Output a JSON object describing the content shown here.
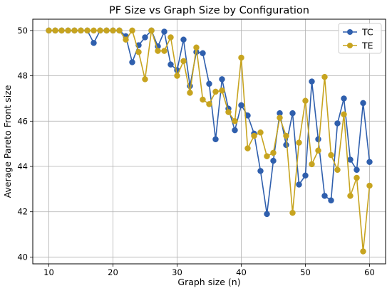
{
  "chart_data": {
    "type": "line",
    "title": "PF Size vs Graph Size by Configuration",
    "xlabel": "Graph size (n)",
    "ylabel": "Average Pareto Front size",
    "xlim": [
      7.5,
      62.5
    ],
    "ylim": [
      39.7,
      50.5
    ],
    "xticks": [
      10,
      20,
      30,
      40,
      50,
      60
    ],
    "yticks": [
      40,
      42,
      44,
      46,
      48,
      50
    ],
    "grid": true,
    "legend_position": "top-right",
    "x": [
      10,
      11,
      12,
      13,
      14,
      15,
      16,
      17,
      18,
      19,
      20,
      21,
      22,
      23,
      24,
      25,
      26,
      27,
      28,
      29,
      30,
      31,
      32,
      33,
      34,
      35,
      36,
      37,
      38,
      39,
      40,
      41,
      42,
      43,
      44,
      45,
      46,
      47,
      48,
      49,
      50,
      51,
      52,
      53,
      54,
      55,
      56,
      57,
      58,
      59,
      60
    ],
    "series": [
      {
        "name": "TC",
        "color": "#2f5fad",
        "values": [
          50.0,
          50.0,
          50.0,
          50.0,
          50.0,
          50.0,
          50.0,
          49.45,
          50.0,
          50.0,
          50.0,
          50.0,
          49.75,
          48.6,
          49.35,
          49.7,
          50.0,
          49.3,
          49.95,
          48.5,
          48.25,
          49.6,
          47.55,
          49.05,
          49.0,
          47.65,
          45.2,
          47.85,
          46.55,
          45.6,
          46.7,
          46.25,
          45.45,
          43.8,
          41.9,
          44.25,
          46.35,
          44.95,
          46.35,
          43.2,
          43.6,
          47.75,
          45.2,
          42.7,
          42.5,
          45.9,
          47.0,
          44.3,
          43.85,
          46.8,
          44.2
        ]
      },
      {
        "name": "TE",
        "color": "#c7a41f",
        "values": [
          50.0,
          50.0,
          50.0,
          50.0,
          50.0,
          50.0,
          50.0,
          50.0,
          50.0,
          50.0,
          50.0,
          50.0,
          49.6,
          50.0,
          49.05,
          47.85,
          50.0,
          49.1,
          49.1,
          49.7,
          48.0,
          48.65,
          47.25,
          49.25,
          46.95,
          46.75,
          47.3,
          47.35,
          46.4,
          46.0,
          48.8,
          44.8,
          45.35,
          45.5,
          44.45,
          44.6,
          46.15,
          45.35,
          41.95,
          45.05,
          46.9,
          44.1,
          44.7,
          47.95,
          44.5,
          43.85,
          46.3,
          42.7,
          43.5,
          40.25,
          43.15
        ]
      }
    ]
  }
}
